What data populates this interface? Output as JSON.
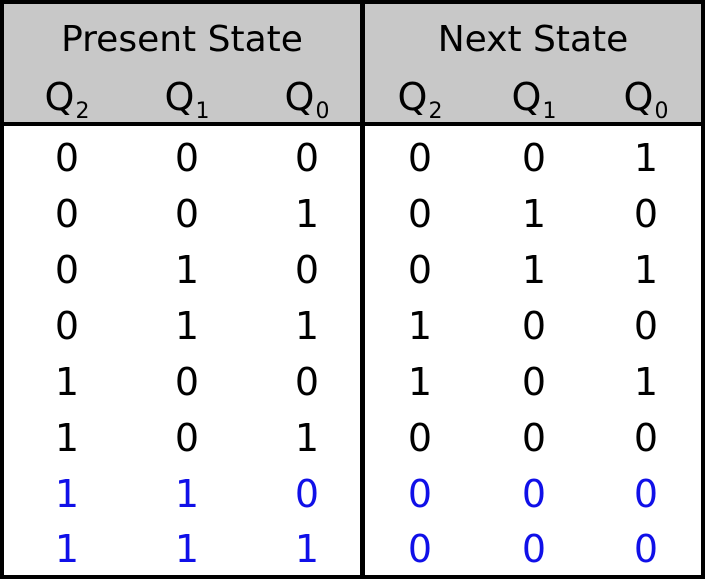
{
  "groups": {
    "present": "Present State",
    "next": "Next State"
  },
  "columns": {
    "present": [
      {
        "letter": "Q",
        "sub": "2"
      },
      {
        "letter": "Q",
        "sub": "1"
      },
      {
        "letter": "Q",
        "sub": "0"
      }
    ],
    "next": [
      {
        "letter": "Q",
        "sub": "2"
      },
      {
        "letter": "Q",
        "sub": "1"
      },
      {
        "letter": "Q",
        "sub": "0"
      }
    ]
  },
  "colors": {
    "header_bg": "#c8c8c8",
    "text": "#000000",
    "highlight": "#1010e8"
  },
  "rows": [
    {
      "present": [
        "0",
        "0",
        "0"
      ],
      "next": [
        "0",
        "0",
        "1"
      ],
      "highlight": false
    },
    {
      "present": [
        "0",
        "0",
        "1"
      ],
      "next": [
        "0",
        "1",
        "0"
      ],
      "highlight": false
    },
    {
      "present": [
        "0",
        "1",
        "0"
      ],
      "next": [
        "0",
        "1",
        "1"
      ],
      "highlight": false
    },
    {
      "present": [
        "0",
        "1",
        "1"
      ],
      "next": [
        "1",
        "0",
        "0"
      ],
      "highlight": false
    },
    {
      "present": [
        "1",
        "0",
        "0"
      ],
      "next": [
        "1",
        "0",
        "1"
      ],
      "highlight": false
    },
    {
      "present": [
        "1",
        "0",
        "1"
      ],
      "next": [
        "0",
        "0",
        "0"
      ],
      "highlight": false
    },
    {
      "present": [
        "1",
        "1",
        "0"
      ],
      "next": [
        "0",
        "0",
        "0"
      ],
      "highlight": true
    },
    {
      "present": [
        "1",
        "1",
        "1"
      ],
      "next": [
        "0",
        "0",
        "0"
      ],
      "highlight": true
    }
  ]
}
